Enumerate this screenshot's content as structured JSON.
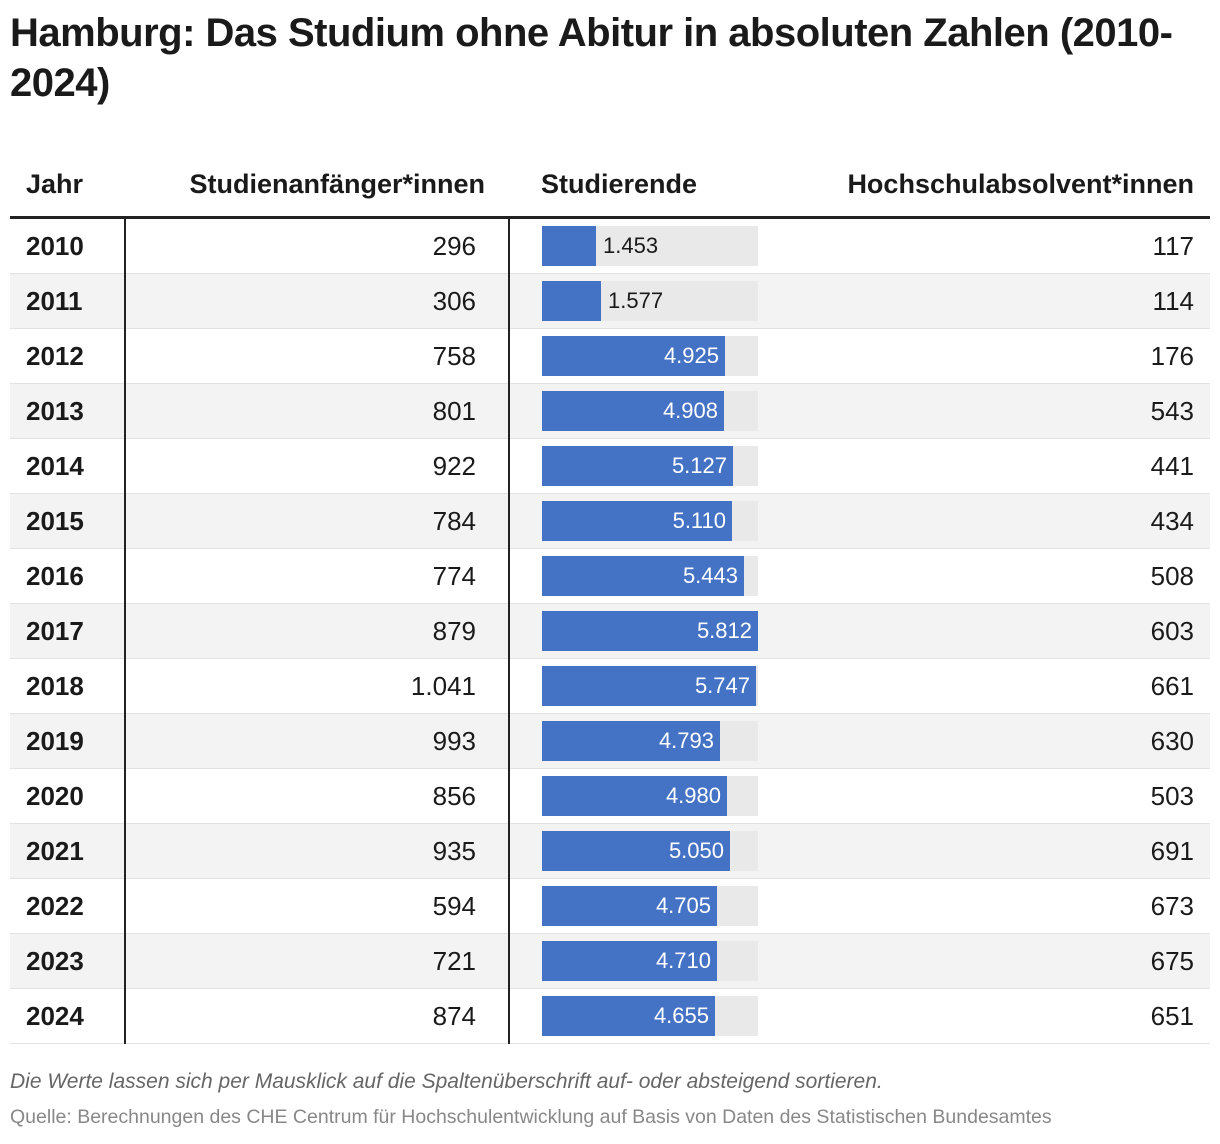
{
  "title": "Hamburg: Das Studium ohne Abitur in absoluten Zahlen (2010-2024)",
  "columns": {
    "year": "Jahr",
    "starters": "Studienanfänger*innen",
    "students": "Studierende",
    "graduates": "Hochschulabsolvent*innen"
  },
  "colors": {
    "bar": "#4472c4",
    "bar_track": "#e9e9e9",
    "row_alt": "#f3f3f3"
  },
  "chart_data": {
    "type": "table",
    "title": "Hamburg: Das Studium ohne Abitur in absoluten Zahlen (2010-2024)",
    "bar_column": "Studierende",
    "bar_max": 5812,
    "rows": [
      {
        "year": "2010",
        "starters": "296",
        "students": 1453,
        "students_label": "1.453",
        "graduates": "117"
      },
      {
        "year": "2011",
        "starters": "306",
        "students": 1577,
        "students_label": "1.577",
        "graduates": "114"
      },
      {
        "year": "2012",
        "starters": "758",
        "students": 4925,
        "students_label": "4.925",
        "graduates": "176"
      },
      {
        "year": "2013",
        "starters": "801",
        "students": 4908,
        "students_label": "4.908",
        "graduates": "543"
      },
      {
        "year": "2014",
        "starters": "922",
        "students": 5127,
        "students_label": "5.127",
        "graduates": "441"
      },
      {
        "year": "2015",
        "starters": "784",
        "students": 5110,
        "students_label": "5.110",
        "graduates": "434"
      },
      {
        "year": "2016",
        "starters": "774",
        "students": 5443,
        "students_label": "5.443",
        "graduates": "508"
      },
      {
        "year": "2017",
        "starters": "879",
        "students": 5812,
        "students_label": "5.812",
        "graduates": "603"
      },
      {
        "year": "2018",
        "starters": "1.041",
        "students": 5747,
        "students_label": "5.747",
        "graduates": "661"
      },
      {
        "year": "2019",
        "starters": "993",
        "students": 4793,
        "students_label": "4.793",
        "graduates": "630"
      },
      {
        "year": "2020",
        "starters": "856",
        "students": 4980,
        "students_label": "4.980",
        "graduates": "503"
      },
      {
        "year": "2021",
        "starters": "935",
        "students": 5050,
        "students_label": "5.050",
        "graduates": "691"
      },
      {
        "year": "2022",
        "starters": "594",
        "students": 4705,
        "students_label": "4.705",
        "graduates": "673"
      },
      {
        "year": "2023",
        "starters": "721",
        "students": 4710,
        "students_label": "4.710",
        "graduates": "675"
      },
      {
        "year": "2024",
        "starters": "874",
        "students": 4655,
        "students_label": "4.655",
        "graduates": "651"
      }
    ]
  },
  "footer": {
    "note": "Die Werte lassen sich per Mausklick auf die Spaltenüberschrift auf- oder absteigend sortieren.",
    "source": "Quelle: Berechnungen des CHE Centrum für Hochschulentwicklung auf Basis von Daten des Statistischen Bundesamtes"
  }
}
